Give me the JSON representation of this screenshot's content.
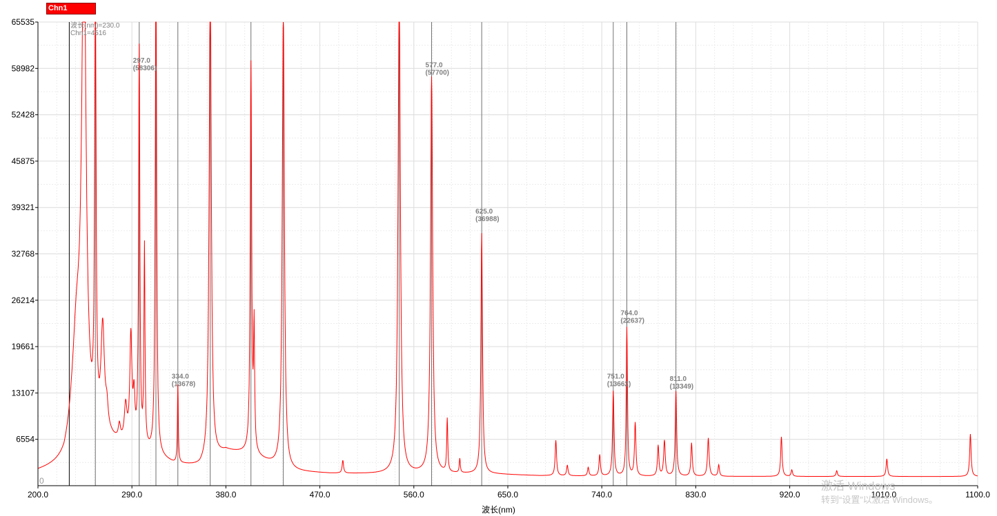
{
  "legend": {
    "label": "Chn1",
    "color": "#ff0000"
  },
  "cursor": {
    "line1": "波长(nm)=230.0",
    "line2": "Chn1=4516"
  },
  "watermark": {
    "line1": "激活 Windows",
    "line2": "转到“设置”以激活 Windows。"
  },
  "chart_data": {
    "type": "line",
    "title": "",
    "xlabel": "波长(nm)",
    "ylabel": "",
    "xlim": [
      200,
      1100
    ],
    "ylim": [
      0,
      65535
    ],
    "y_origin_label": "0",
    "xticks": [
      200,
      290,
      380,
      470,
      560,
      650,
      740,
      830,
      920,
      1010,
      1100
    ],
    "xtick_labels": [
      "200.0",
      "290.0",
      "380.0",
      "470.0",
      "560.0",
      "650.0",
      "740.0",
      "830.0",
      "920.0",
      "1010.0",
      "1100.0"
    ],
    "yticks": [
      0,
      6554,
      13107,
      19661,
      26214,
      32768,
      39321,
      45875,
      52428,
      58982,
      65535
    ],
    "ytick_labels": [
      "0",
      "6554",
      "13107",
      "19661",
      "26214",
      "32768",
      "39321",
      "45875",
      "52428",
      "58982",
      "65535"
    ],
    "grid": true,
    "series": [
      {
        "name": "Chn1",
        "color": "#ff0000",
        "baseline": [
          [
            200,
            1900
          ],
          [
            225,
            2600
          ],
          [
            232,
            4500
          ],
          [
            270,
            5800
          ],
          [
            300,
            4800
          ],
          [
            330,
            3000
          ],
          [
            355,
            2600
          ],
          [
            380,
            4800
          ],
          [
            400,
            4500
          ],
          [
            440,
            2000
          ],
          [
            480,
            1700
          ],
          [
            550,
            1600
          ],
          [
            570,
            1700
          ],
          [
            640,
            1600
          ],
          [
            680,
            1400
          ],
          [
            760,
            1300
          ],
          [
            900,
            1300
          ],
          [
            1000,
            1300
          ],
          [
            1100,
            1300
          ]
        ],
        "peaks": [
          [
            237,
            15000,
            5
          ],
          [
            244,
            70000,
            2.5
          ],
          [
            255,
            63000,
            0.8
          ],
          [
            262,
            15000,
            2
          ],
          [
            266,
            3000,
            1.5
          ],
          [
            278,
            2000,
            1.2
          ],
          [
            284,
            5000,
            1.5
          ],
          [
            289,
            15000,
            1.2
          ],
          [
            292,
            6000,
            1
          ],
          [
            297,
            56000,
            0.7
          ],
          [
            302,
            28000,
            0.6
          ],
          [
            313,
            70000,
            0.8
          ],
          [
            334,
            11000,
            0.5
          ],
          [
            365,
            70000,
            1.2
          ],
          [
            404,
            55000,
            0.8
          ],
          [
            407,
            17000,
            0.6
          ],
          [
            435,
            65000,
            1.2
          ],
          [
            492,
            1800,
            0.8
          ],
          [
            546,
            70000,
            1.3
          ],
          [
            577,
            56000,
            1.2
          ],
          [
            592,
            7500,
            0.6
          ],
          [
            604,
            2000,
            0.6
          ],
          [
            625,
            34000,
            0.9
          ],
          [
            696,
            5000,
            0.8
          ],
          [
            707,
            1500,
            0.8
          ],
          [
            727,
            1200,
            0.8
          ],
          [
            738,
            3000,
            0.8
          ],
          [
            751,
            12000,
            0.8
          ],
          [
            764,
            21000,
            0.7
          ],
          [
            772,
            7500,
            0.8
          ],
          [
            794,
            4300,
            0.8
          ],
          [
            800,
            5000,
            0.9
          ],
          [
            811,
            12000,
            0.8
          ],
          [
            826,
            4700,
            0.8
          ],
          [
            842,
            5400,
            0.9
          ],
          [
            852,
            1600,
            0.8
          ],
          [
            912,
            5600,
            0.8
          ],
          [
            922,
            900,
            0.8
          ],
          [
            965,
            800,
            0.8
          ],
          [
            1013,
            2500,
            0.8
          ],
          [
            1093,
            6000,
            0.8
          ]
        ]
      }
    ],
    "marker_lines": [
      230,
      255,
      297,
      313,
      334,
      365,
      404,
      435,
      546,
      577,
      625,
      751,
      764,
      811
    ],
    "annotations": [
      {
        "x": 297,
        "y": 58306,
        "line1": "297.0",
        "line2": "(58306)"
      },
      {
        "x": 334,
        "y": 13678,
        "line1": "334.0",
        "line2": "(13678)"
      },
      {
        "x": 577,
        "y": 57700,
        "line1": "577.0",
        "line2": "(57700)"
      },
      {
        "x": 625,
        "y": 36988,
        "line1": "625.0",
        "line2": "(36988)"
      },
      {
        "x": 751,
        "y": 13662,
        "line1": "751.0",
        "line2": "(13662)"
      },
      {
        "x": 764,
        "y": 22637,
        "line1": "764.0",
        "line2": "(22637)"
      },
      {
        "x": 811,
        "y": 13349,
        "line1": "811.0",
        "line2": "(13349)"
      }
    ]
  }
}
